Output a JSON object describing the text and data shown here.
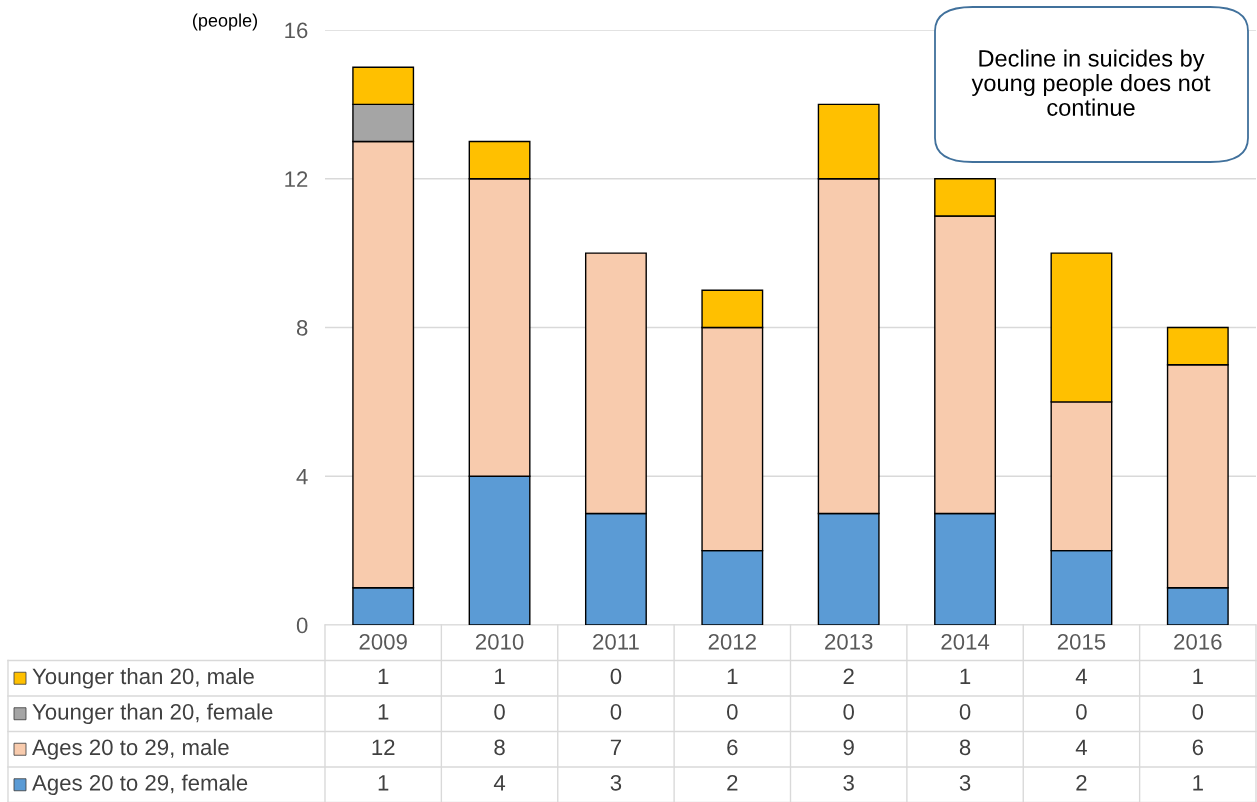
{
  "chart_data": {
    "type": "bar",
    "stacked": true,
    "ylabel": "(people)",
    "categories": [
      "2009",
      "2010",
      "2011",
      "2012",
      "2013",
      "2014",
      "2015",
      "2016"
    ],
    "series": [
      {
        "name": "Ages 20 to 29, female",
        "color": "#5b9bd5",
        "values": [
          1,
          4,
          3,
          2,
          3,
          3,
          2,
          1
        ]
      },
      {
        "name": "Ages 20 to 29, male",
        "color": "#f8cbad",
        "values": [
          12,
          8,
          7,
          6,
          9,
          8,
          4,
          6
        ]
      },
      {
        "name": "Younger than 20, female",
        "color": "#a5a5a5",
        "values": [
          1,
          0,
          0,
          0,
          0,
          0,
          0,
          0
        ]
      },
      {
        "name": "Younger than 20, male",
        "color": "#ffc000",
        "values": [
          1,
          1,
          0,
          1,
          2,
          1,
          4,
          1
        ]
      }
    ],
    "ylim": [
      0,
      16
    ],
    "yticks": [
      0,
      4,
      8,
      12,
      16
    ],
    "grid": "y",
    "data_labels": true,
    "legend": "bottom",
    "annotations": [
      "Decline in suicides by young people does not continue"
    ]
  }
}
